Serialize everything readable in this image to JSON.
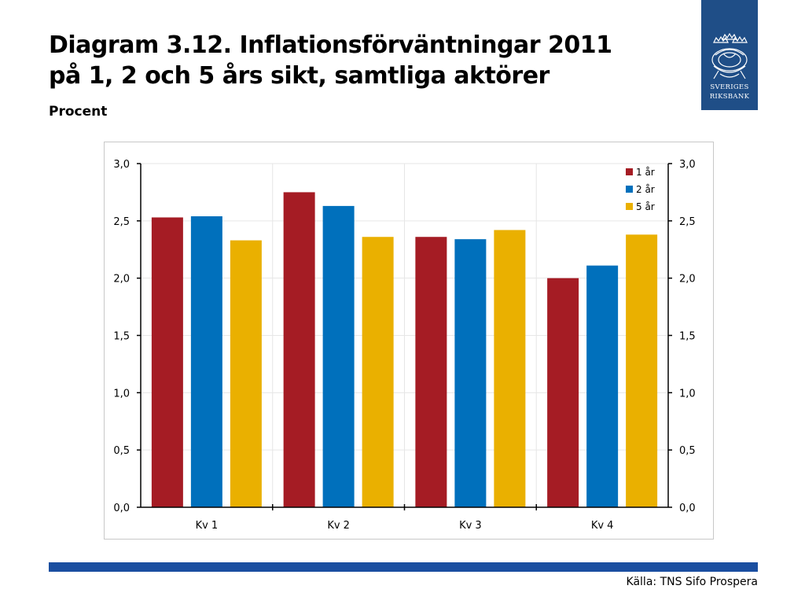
{
  "header": {
    "title_line1": "Diagram 3.12. Inflationsförväntningar 2011",
    "title_line2": "på 1, 2 och 5 års sikt, samtliga aktörer",
    "subtitle": "Procent"
  },
  "logo": {
    "line1": "SVERIGES",
    "line2": "RIKSBANK",
    "color": "#1f4e87"
  },
  "footer": {
    "source": "Källa: TNS Sifo Prospera",
    "bar_color": "#1a4ea0"
  },
  "chart_data": {
    "type": "bar",
    "categories": [
      "Kv 1",
      "Kv 2",
      "Kv 3",
      "Kv 4"
    ],
    "series": [
      {
        "name": "1 år",
        "color": "#a51c24",
        "values": [
          2.53,
          2.75,
          2.36,
          2.0
        ]
      },
      {
        "name": "2 år",
        "color": "#0070bc",
        "values": [
          2.54,
          2.63,
          2.34,
          2.11
        ]
      },
      {
        "name": "5 år",
        "color": "#eab000",
        "values": [
          2.33,
          2.36,
          2.42,
          2.38
        ]
      }
    ],
    "ylim": [
      0,
      3
    ],
    "yticks": [
      "0,0",
      "0,5",
      "1,0",
      "1,5",
      "2,0",
      "2,5",
      "3,0"
    ],
    "ytick_values": [
      0,
      0.5,
      1,
      1.5,
      2,
      2.5,
      3
    ],
    "secondary_y_axis": true,
    "grid": true,
    "legend_position": "top-right"
  }
}
